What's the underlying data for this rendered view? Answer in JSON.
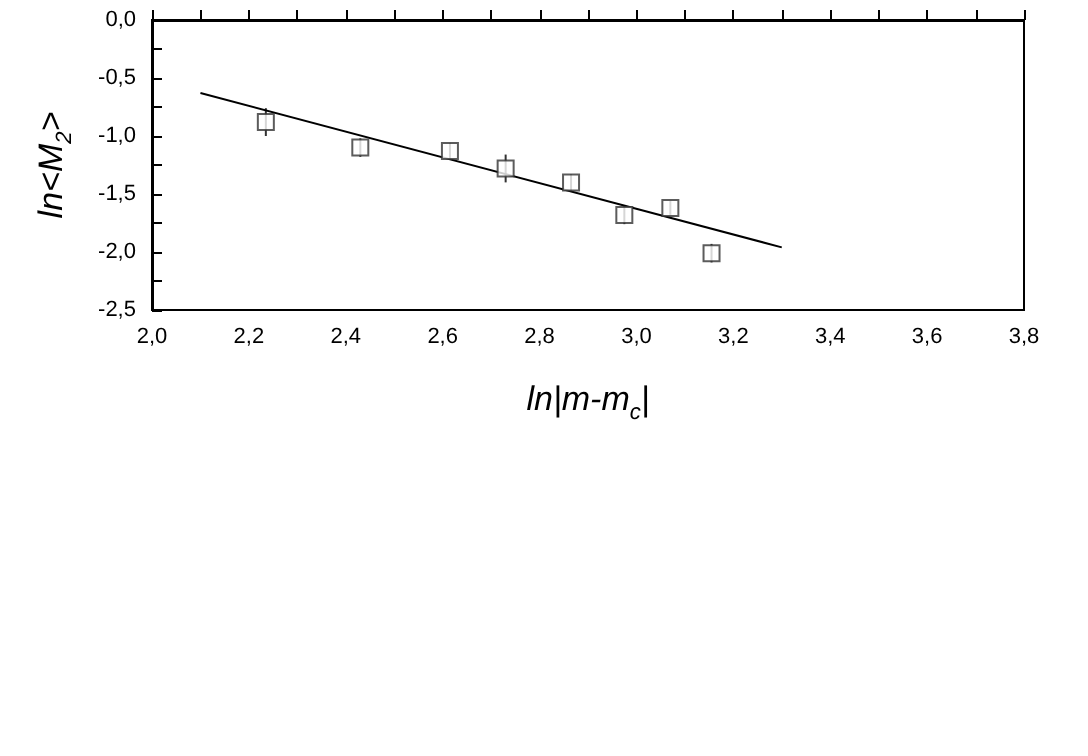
{
  "chart_data": {
    "type": "scatter",
    "xlabel": "ln|m-m$_{c}$|",
    "ylabel": "ln<M$_{2}$>",
    "xlim": [
      2.0,
      3.8
    ],
    "xticks": [
      {
        "value": 2.0,
        "label": "2,0"
      },
      {
        "value": 2.2,
        "label": "2,2"
      },
      {
        "value": 2.4,
        "label": "2,4"
      },
      {
        "value": 2.6,
        "label": "2,6"
      },
      {
        "value": 2.8,
        "label": "2,8"
      },
      {
        "value": 3.0,
        "label": "3,0"
      },
      {
        "value": 3.2,
        "label": "3,2"
      },
      {
        "value": 3.4,
        "label": "3,4"
      },
      {
        "value": 3.6,
        "label": "3,6"
      },
      {
        "value": 3.8,
        "label": "3,8"
      }
    ],
    "ylim": [
      -2.5,
      0.0
    ],
    "yticks": [
      {
        "value": -2.5,
        "label": "-2,5"
      },
      {
        "value": -2.0,
        "label": "-2,0"
      },
      {
        "value": -1.5,
        "label": "-1,5"
      },
      {
        "value": -1.0,
        "label": "-1,0"
      },
      {
        "value": -0.5,
        "label": "-0,5"
      },
      {
        "value": 0.0,
        "label": "0,0"
      }
    ],
    "grid": false,
    "series": [
      {
        "color": "#333333",
        "marker": "square",
        "x": [
          2.235,
          2.43,
          2.615,
          2.73,
          2.865,
          2.975,
          3.07,
          3.155
        ],
        "values": [
          -0.88,
          -1.1,
          -1.13,
          -1.28,
          -1.4,
          -1.68,
          -1.62,
          -2.01
        ],
        "errors": [
          0.12,
          0.08,
          0.07,
          0.12,
          0.07,
          0.08,
          0.06,
          0.08
        ]
      },
      {
        "type": "line",
        "color": "#000000",
        "marker": "none",
        "line_style": "solid",
        "x": [
          2.1,
          3.3
        ],
        "values": [
          -0.63,
          -1.96
        ]
      }
    ]
  }
}
